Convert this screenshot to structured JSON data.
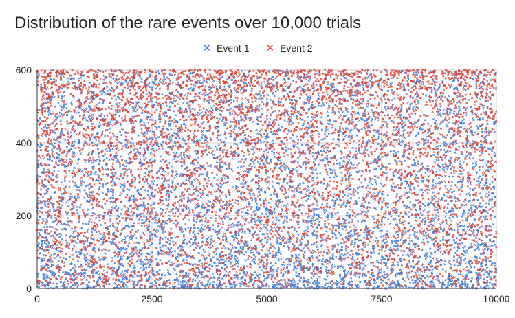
{
  "chart_data": {
    "type": "scatter",
    "title": "Distribution of the rare events over 10,000 trials",
    "xlabel": "",
    "ylabel": "",
    "xlim": [
      0,
      10000
    ],
    "ylim": [
      0,
      600
    ],
    "x_ticks": [
      "0",
      "2500",
      "5000",
      "7500",
      "10000"
    ],
    "y_ticks": [
      "0",
      "200",
      "400",
      "600"
    ],
    "grid": true,
    "legend_position": "top-center",
    "marker": "x",
    "series": [
      {
        "name": "Event 1",
        "color": "#3c78d8",
        "point_count": 6000,
        "distribution": "concentrated toward low y, density decreasing with y, uniform across x",
        "y_range": [
          0,
          600
        ]
      },
      {
        "name": "Event 2",
        "color": "#db4437",
        "point_count": 6000,
        "distribution": "concentrated toward high y, density increasing with y, uniform across x",
        "y_range": [
          0,
          600
        ]
      }
    ]
  }
}
